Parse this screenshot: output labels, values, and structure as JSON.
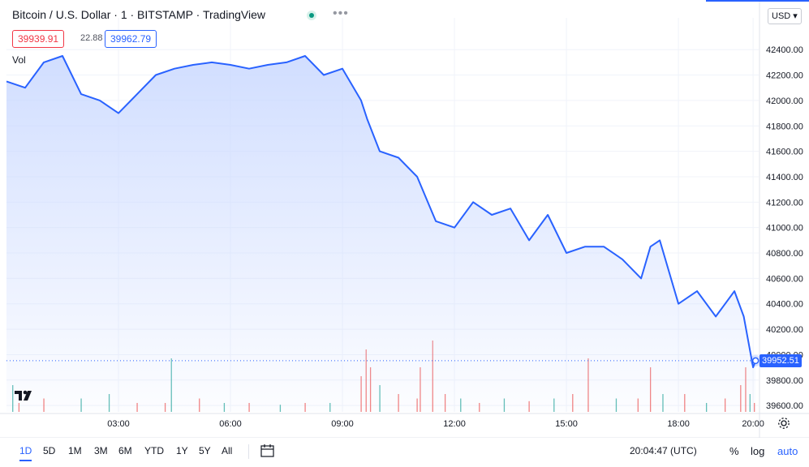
{
  "header": {
    "symbol_title": "Bitcoin / U.S. Dollar · 1 · BITSTAMP · TradingView",
    "bid": "39939.91",
    "spread": "22.88",
    "ask": "39962.79",
    "volume_label": "Vol"
  },
  "currency": "USD",
  "last_price": "39952.51",
  "toolbar": {
    "timeframes": [
      "1D",
      "5D",
      "1M",
      "3M",
      "6M",
      "YTD",
      "1Y",
      "5Y",
      "All"
    ],
    "active_timeframe": "1D",
    "clock": "20:04:47 (UTC)",
    "percent_label": "%",
    "log_label": "log",
    "auto_label": "auto"
  },
  "colors": {
    "line": "#2962ff",
    "area_top": "#c9d8ff",
    "volume_up": "#26a69a",
    "volume_down": "#ef5350",
    "grid": "#f0f3fa"
  },
  "chart_data": {
    "type": "area",
    "x_unit": "time (UTC)",
    "x": [
      "00:00",
      "00:30",
      "01:00",
      "01:30",
      "02:00",
      "02:30",
      "03:00",
      "03:30",
      "04:00",
      "04:30",
      "05:00",
      "05:30",
      "06:00",
      "06:30",
      "07:00",
      "07:30",
      "08:00",
      "08:30",
      "09:00",
      "09:30",
      "09:40",
      "10:00",
      "10:30",
      "11:00",
      "11:30",
      "12:00",
      "12:30",
      "13:00",
      "13:30",
      "14:00",
      "14:30",
      "15:00",
      "15:30",
      "16:00",
      "16:30",
      "17:00",
      "17:15",
      "17:30",
      "18:00",
      "18:30",
      "19:00",
      "19:30",
      "19:45",
      "20:00",
      "20:04"
    ],
    "series": [
      {
        "values": [
          42150,
          42100,
          42300,
          42350,
          42050,
          42000,
          41900,
          42050,
          42200,
          42250,
          42280,
          42300,
          42280,
          42250,
          42280,
          42300,
          42350,
          42200,
          42250,
          42000,
          41850,
          41600,
          41550,
          41400,
          41050,
          41000,
          41200,
          41100,
          41150,
          40900,
          41100,
          40800,
          40850,
          40850,
          40750,
          40600,
          40850,
          40900,
          40400,
          40500,
          40300,
          40500,
          40300,
          39900,
          39952.51
        ]
      }
    ],
    "y_ticks": [
      "42400.00",
      "42200.00",
      "42000.00",
      "41800.00",
      "41600.00",
      "41400.00",
      "41200.00",
      "41000.00",
      "40800.00",
      "40600.00",
      "40400.00",
      "40200.00",
      "40000.00",
      "39800.00",
      "39600.00"
    ],
    "x_ticks": [
      "03:00",
      "06:00",
      "09:00",
      "12:00",
      "15:00",
      "18:00",
      "20:00"
    ],
    "ylim": [
      39550,
      42650
    ],
    "grid": true,
    "legend": "none",
    "volume": {
      "x": [
        "00:10",
        "00:20",
        "01:00",
        "02:00",
        "02:45",
        "03:30",
        "04:15",
        "04:25",
        "05:10",
        "05:50",
        "06:30",
        "07:20",
        "08:00",
        "08:40",
        "09:30",
        "09:38",
        "09:45",
        "10:00",
        "10:30",
        "11:00",
        "11:05",
        "11:25",
        "11:45",
        "12:10",
        "12:40",
        "13:20",
        "14:00",
        "14:40",
        "15:10",
        "15:35",
        "16:20",
        "16:55",
        "17:15",
        "17:35",
        "18:10",
        "18:45",
        "19:15",
        "19:40",
        "19:48",
        "19:55",
        "20:02"
      ],
      "values": [
        3,
        1,
        1.5,
        1.5,
        2,
        1,
        1,
        6,
        1.5,
        1,
        1,
        0.8,
        1,
        1,
        4,
        7,
        5,
        3,
        2,
        1.5,
        5,
        8,
        2,
        1.5,
        1,
        1.5,
        1.2,
        1.5,
        2,
        6,
        1.5,
        1.5,
        5,
        2,
        2,
        1,
        1.5,
        3,
        5,
        2,
        1
      ],
      "direction": [
        "up",
        "down",
        "down",
        "up",
        "up",
        "down",
        "down",
        "up",
        "down",
        "up",
        "down",
        "up",
        "down",
        "up",
        "down",
        "down",
        "down",
        "up",
        "down",
        "down",
        "down",
        "down",
        "down",
        "up",
        "down",
        "up",
        "down",
        "up",
        "down",
        "down",
        "up",
        "down",
        "down",
        "up",
        "down",
        "up",
        "down",
        "down",
        "down",
        "up",
        "down"
      ]
    }
  }
}
